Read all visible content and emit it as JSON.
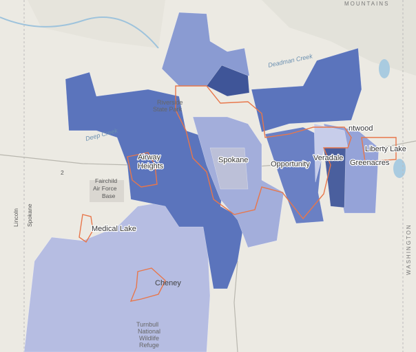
{
  "labels": {
    "mountains": "MOUNTAINS",
    "deadman_creek": "Deadman Creek",
    "riverside_1": "Riverside",
    "riverside_2": "State Park",
    "deep_creek": "Deep Creek",
    "airway": "Airway",
    "heights": "Heights",
    "fairchild": "Fairchild",
    "air_force": "Air Force",
    "base": "Base",
    "route": "2",
    "lincoln": "Lincoln",
    "spokane_county": "Spokane",
    "medical_lake": "Medical Lake",
    "cheney": "Cheney",
    "turnbull_1": "Turnbull",
    "turnbull_2": "National",
    "turnbull_3": "Wildlife",
    "turnbull_4": "Refuge",
    "spokane": "Spokane",
    "opportunity": "Opportunity",
    "veradale": "Veradale",
    "greenacres": "Greenacres",
    "liberty_lake": "Liberty Lake",
    "trentwood": "ntwood",
    "washington": "WASHINGTON"
  }
}
